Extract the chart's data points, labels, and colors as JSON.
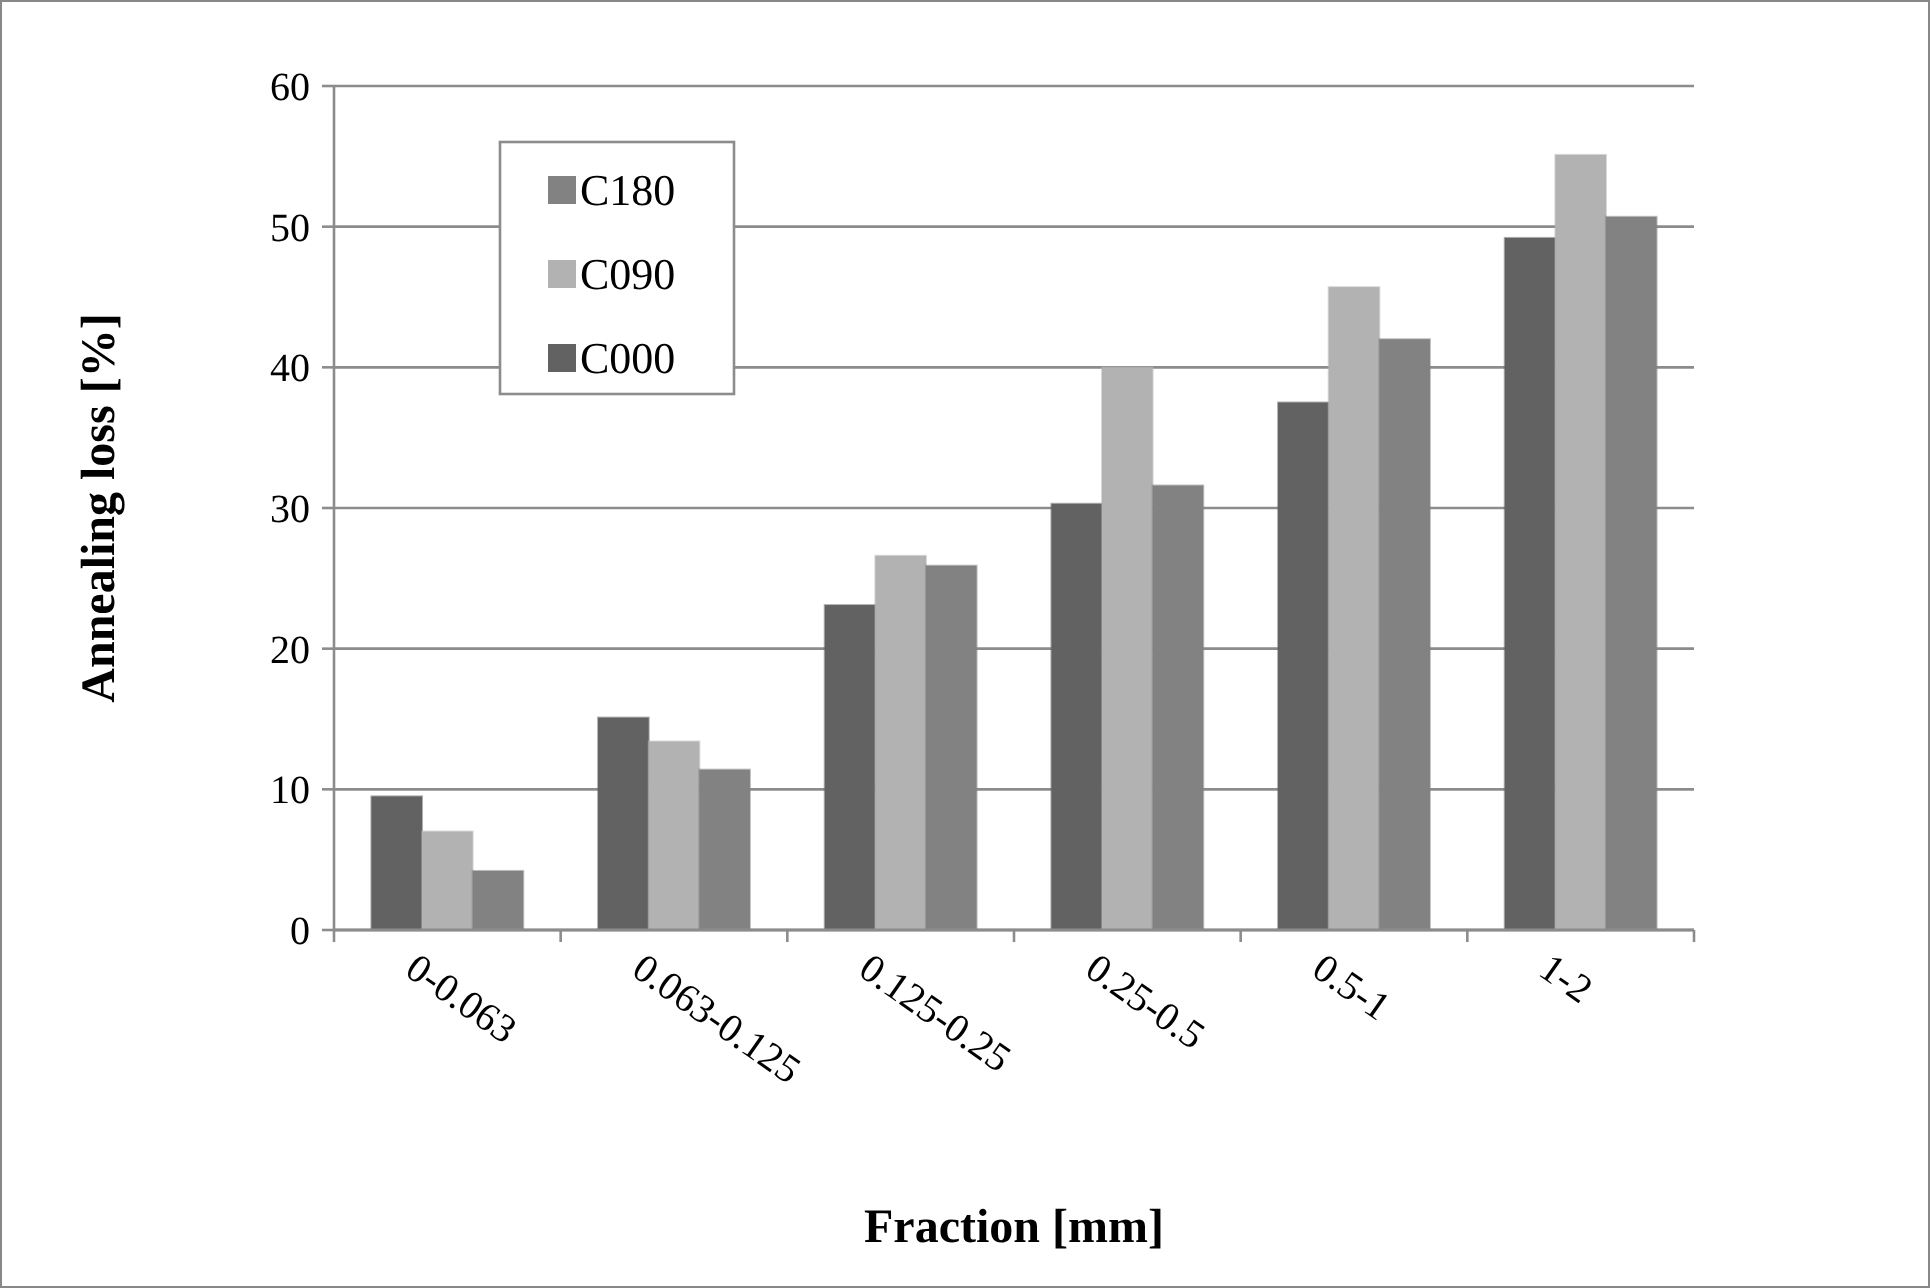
{
  "chart_data": {
    "type": "bar",
    "xlabel": "Fraction [mm]",
    "ylabel": "Annealing loss [%]",
    "categories": [
      "0-0.063",
      "0.063-0.125",
      "0.125-0.25",
      "0.25-0.5",
      "0.5-1",
      "1-2"
    ],
    "series": [
      {
        "name": "C000",
        "color": "#626262",
        "values": [
          9.5,
          15.1,
          23.1,
          30.3,
          37.5,
          49.2
        ]
      },
      {
        "name": "C090",
        "color": "#b2b2b2",
        "values": [
          7.0,
          13.4,
          26.6,
          40.0,
          45.7,
          55.1
        ]
      },
      {
        "name": "C180",
        "color": "#828282",
        "values": [
          4.2,
          11.4,
          25.9,
          31.6,
          42.0,
          50.7
        ]
      }
    ],
    "ylim": [
      0,
      60
    ],
    "yticks": [
      0,
      10,
      20,
      30,
      40,
      50,
      60
    ],
    "grid": "y",
    "legend": "top left"
  }
}
